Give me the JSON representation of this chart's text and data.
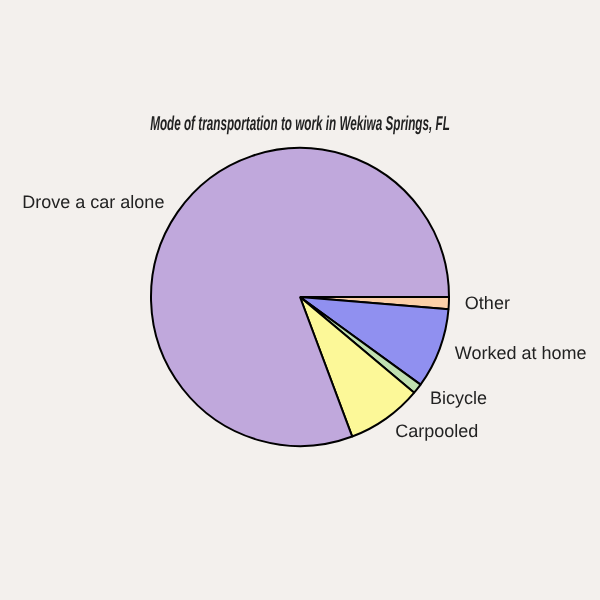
{
  "chart_data": {
    "type": "pie",
    "title": "Mode of transportation to work in Wekiwa Springs, FL",
    "categories": [
      "Other",
      "Worked at home",
      "Bicycle",
      "Carpooled",
      "Drove a car alone"
    ],
    "values": [
      1.3,
      8.7,
      1.1,
      8.2,
      80.7
    ],
    "colors": [
      "#fcd0a8",
      "#9090f0",
      "#c0e0b0",
      "#fcf898",
      "#c0a8dc"
    ]
  }
}
